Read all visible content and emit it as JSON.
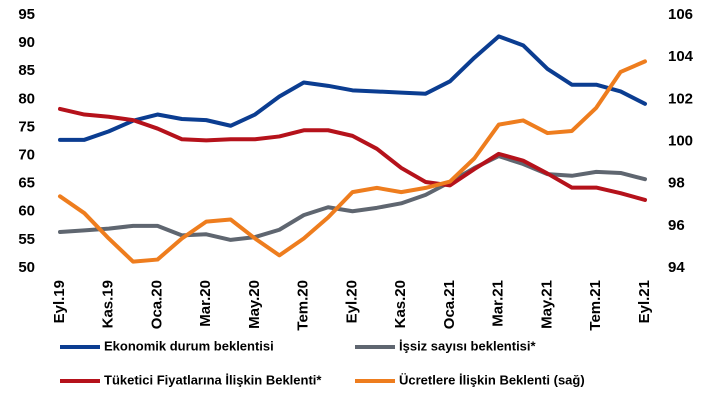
{
  "chart_data": {
    "type": "line",
    "categories": [
      "Eyl.19",
      null,
      "Kas.19",
      null,
      "Oca.20",
      null,
      "Mar.20",
      null,
      "May.20",
      null,
      "Tem.20",
      null,
      "Eyl.20",
      null,
      "Kas.20",
      null,
      "Oca.21",
      null,
      "Mar.21",
      null,
      "May.21",
      null,
      "Tem.21",
      null,
      "Eyl.21"
    ],
    "ylim": [
      50,
      95
    ],
    "yticks": [
      50,
      55,
      60,
      65,
      70,
      75,
      80,
      85,
      90,
      95
    ],
    "y2lim": [
      94,
      106
    ],
    "y2ticks": [
      94,
      96,
      98,
      100,
      102,
      104,
      106
    ],
    "grid": false,
    "legend": "bottom",
    "series": [
      {
        "name": "Ekonomik durum beklentisi",
        "color": "#0b3d91",
        "values": [
          72.8,
          72.8,
          74.3,
          76.2,
          77.3,
          76.5,
          76.3,
          75.3,
          77.3,
          80.5,
          83.0,
          82.4,
          81.6,
          81.4,
          81.2,
          81.0,
          83.2,
          87.4,
          91.2,
          89.6,
          85.4,
          82.6,
          82.6,
          81.4,
          79.2
        ]
      },
      {
        "name": "İşsiz sayısı beklentisi*",
        "color": "#5f6670",
        "values": [
          56.4,
          56.7,
          57.0,
          57.5,
          57.5,
          55.8,
          56.0,
          55.0,
          55.5,
          56.8,
          59.4,
          60.8,
          60.1,
          60.7,
          61.5,
          63.0,
          65.3,
          67.8,
          69.9,
          68.5,
          66.7,
          66.4,
          67.1,
          66.9,
          65.8
        ]
      },
      {
        "name": "Tüketici Fiyatlarına İlişkin Beklenti*",
        "color": "#b5121b",
        "values": [
          78.3,
          77.3,
          76.9,
          76.3,
          74.8,
          72.9,
          72.7,
          72.9,
          72.9,
          73.4,
          74.5,
          74.5,
          73.5,
          71.2,
          67.8,
          65.3,
          64.7,
          67.6,
          70.3,
          69.1,
          66.8,
          64.3,
          64.3,
          63.3,
          62.1
        ]
      },
      {
        "name": "Ücretlere İlişkin Beklenti (sağ)",
        "color": "#ee7d1e",
        "axis": "y2",
        "values": [
          97.4,
          96.6,
          95.4,
          94.3,
          94.4,
          95.4,
          96.2,
          96.3,
          95.4,
          94.6,
          95.4,
          96.4,
          97.6,
          97.8,
          97.6,
          97.8,
          98.1,
          99.2,
          100.8,
          101.0,
          100.4,
          100.5,
          101.6,
          103.3,
          103.8
        ]
      }
    ]
  }
}
